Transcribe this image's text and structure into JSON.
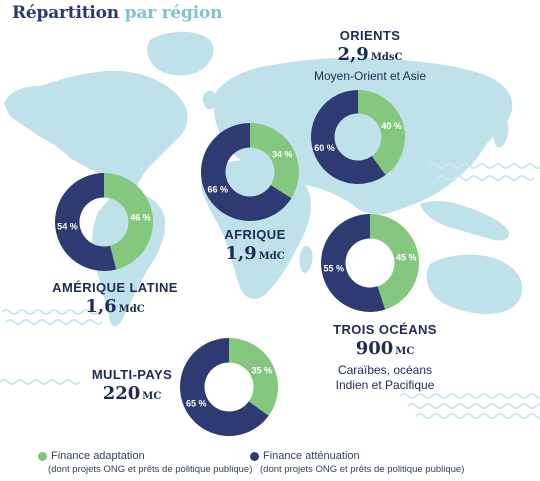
{
  "title": {
    "part1": "Répartition",
    "part2": "par région"
  },
  "colors": {
    "adaptation": "#84c77e",
    "attenuation": "#2e3b73",
    "map": "#bfe2ea",
    "waves": "#cfe8ef"
  },
  "legend": [
    {
      "label": "Finance adaptation",
      "note": "(dont projets ONG et prêts de politique publique)"
    },
    {
      "label": "Finance atténuation",
      "note": "(dont projets ONG et prêts de politique publique)"
    }
  ],
  "chart_data": [
    {
      "type": "pie",
      "donut": true,
      "series": [
        "Finance adaptation",
        "Finance atténuation"
      ],
      "region": "ORIENTS",
      "amount": "2,9",
      "unit": "MdsC",
      "subtitle": "Moyen-Orient et Asie",
      "values": [
        40,
        60
      ],
      "labels": [
        "40 %",
        "60 %"
      ]
    },
    {
      "type": "pie",
      "donut": true,
      "series": [
        "Finance adaptation",
        "Finance atténuation"
      ],
      "region": "AFRIQUE",
      "amount": "1,9",
      "unit": "MdC",
      "subtitle": "",
      "values": [
        34,
        66
      ],
      "labels": [
        "34 %",
        "66 %"
      ]
    },
    {
      "type": "pie",
      "donut": true,
      "series": [
        "Finance adaptation",
        "Finance atténuation"
      ],
      "region": "AMÉRIQUE LATINE",
      "amount": "1,6",
      "unit": "MdC",
      "subtitle": "",
      "values": [
        46,
        54
      ],
      "labels": [
        "46 %",
        "54 %"
      ]
    },
    {
      "type": "pie",
      "donut": true,
      "series": [
        "Finance adaptation",
        "Finance atténuation"
      ],
      "region": "TROIS OCÉANS",
      "amount": "900",
      "unit": "MC",
      "subtitle": "Caraïbes, océans Indien et Pacifique",
      "values": [
        45,
        55
      ],
      "labels": [
        "45 %",
        "55 %"
      ]
    },
    {
      "type": "pie",
      "donut": true,
      "series": [
        "Finance adaptation",
        "Finance atténuation"
      ],
      "region": "MULTI-PAYS",
      "amount": "220",
      "unit": "MC",
      "subtitle": "",
      "values": [
        35,
        65
      ],
      "labels": [
        "35 %",
        "65 %"
      ]
    }
  ]
}
